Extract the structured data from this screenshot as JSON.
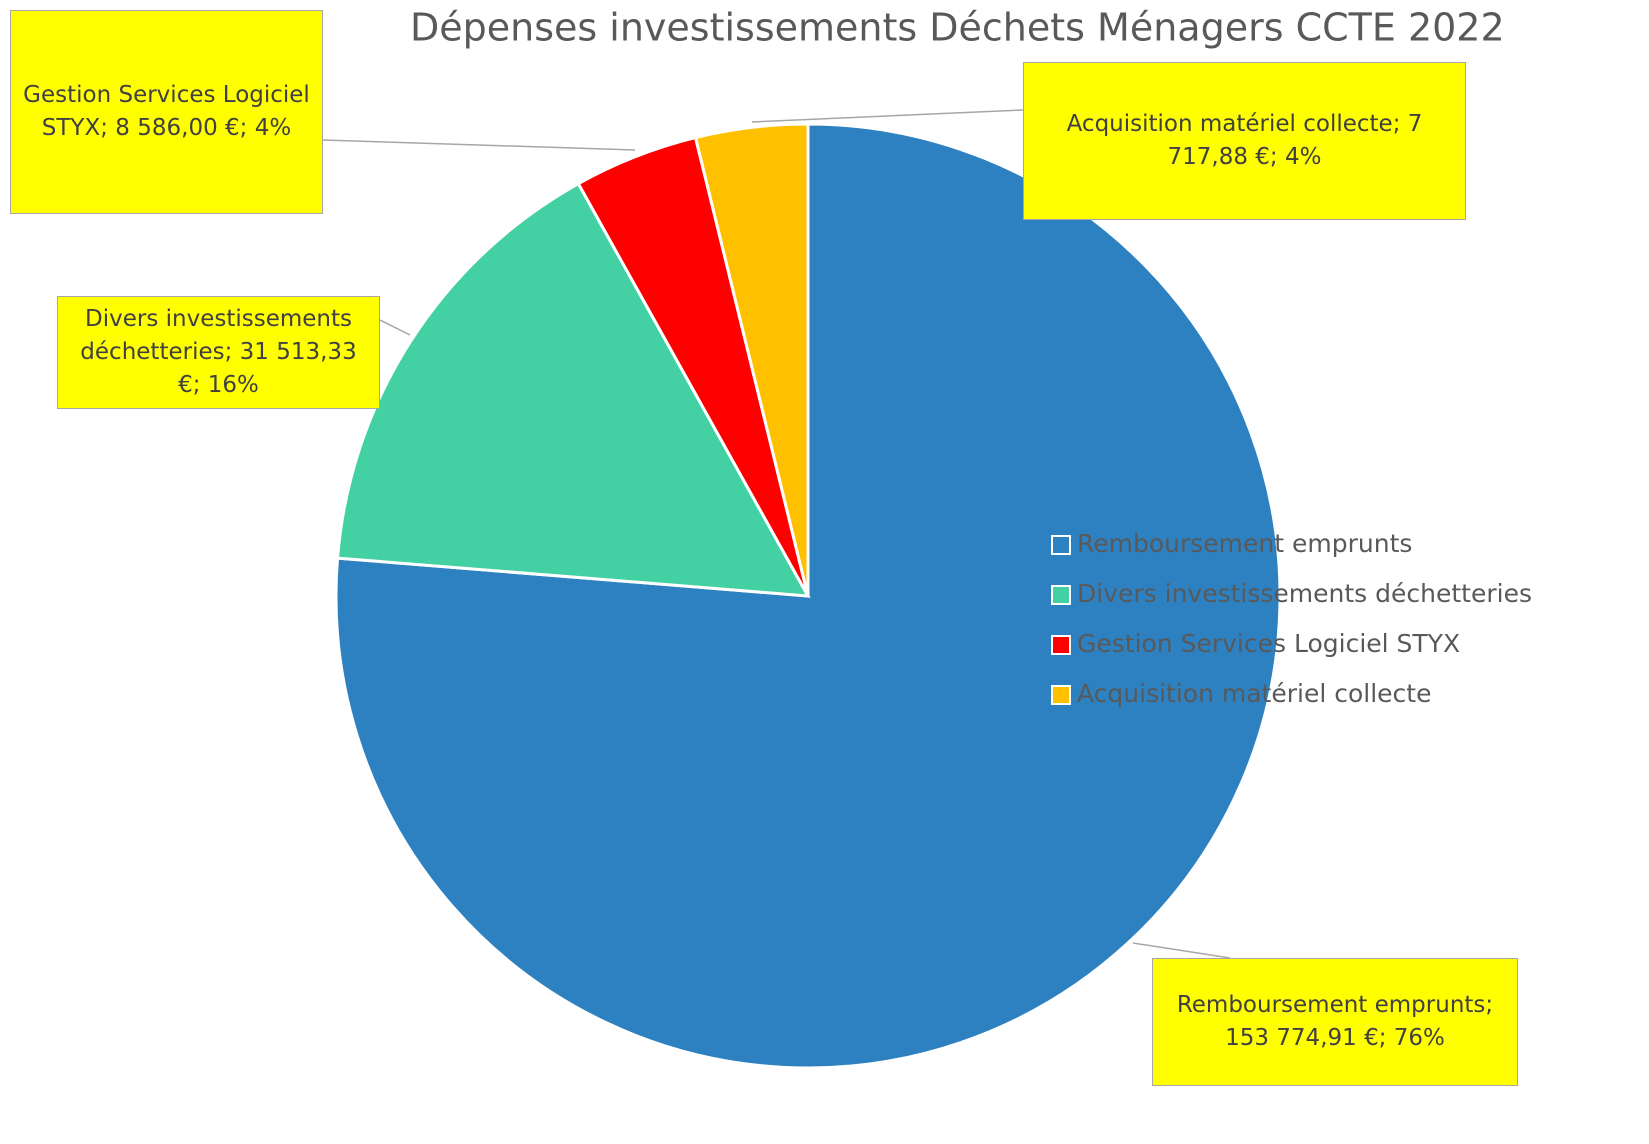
{
  "chart_data": {
    "type": "pie",
    "title": "Dépenses investissements Déchets Ménagers CCTE 2022",
    "categories": [
      "Remboursement emprunts",
      "Divers investissements déchetteries",
      "Gestion Services Logiciel STYX",
      "Acquisition matériel collecte"
    ],
    "values": [
      153774.91,
      31513.33,
      8586.0,
      7717.88
    ],
    "value_labels": [
      "Remboursement emprunts; 153 774,91 €; 76%",
      "Divers investissements déchetteries; 31 513,33 €; 16%",
      "Gestion Services Logiciel STYX; 8 586,00 €; 4%",
      "Acquisition matériel collecte; 7 717,88 €; 4%"
    ],
    "colors": [
      "#2e81c1",
      "#43d0a2",
      "#ff0000",
      "#ffc000"
    ],
    "legend": "right"
  }
}
